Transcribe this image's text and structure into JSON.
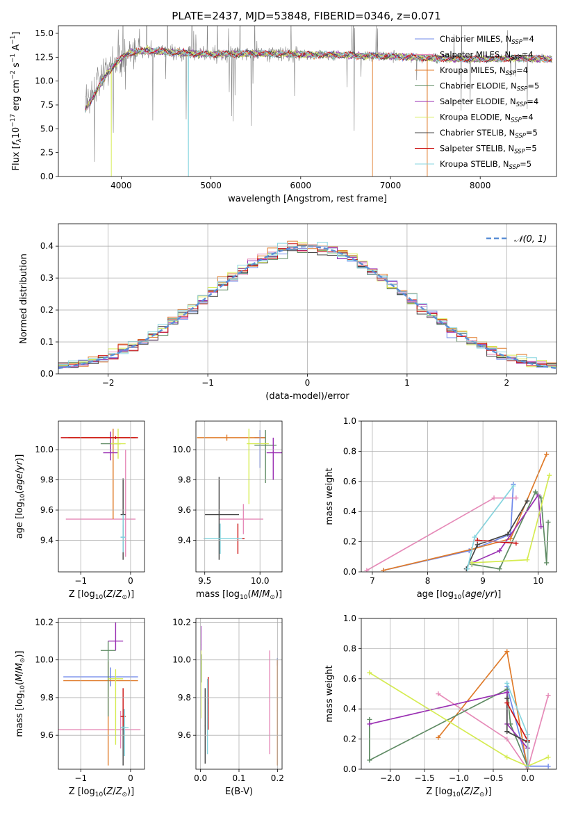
{
  "title": "PLATE=2437, MJD=53848, FIBERID=0346, z=0.071",
  "colors": {
    "chabrier_miles": "#6f88ea",
    "salpeter_miles": "#e68ab8",
    "kroupa_miles": "#e07b2a",
    "chabrier_elodie": "#5f8b64",
    "salpeter_elodie": "#9a2fb3",
    "kroupa_elodie": "#d6ec52",
    "chabrier_stelib": "#444444",
    "salpeter_stelib": "#cc1111",
    "kroupa_stelib": "#86d5df",
    "data": "#808080",
    "gaussian": "#5b8fd6",
    "grid": "#b0b0b0"
  },
  "legend_spectrum": [
    {
      "key": "chabrier_miles",
      "label": "Chabrier MILES, N",
      "sub": "SSP",
      "suffix": "=4"
    },
    {
      "key": "salpeter_miles",
      "label": "Salpeter MILES, N",
      "sub": "SSP",
      "suffix": "=4"
    },
    {
      "key": "kroupa_miles",
      "label": "Kroupa MILES, N",
      "sub": "SSP",
      "suffix": "=4"
    },
    {
      "key": "chabrier_elodie",
      "label": "Chabrier ELODIE, N",
      "sub": "SSP",
      "suffix": "=5"
    },
    {
      "key": "salpeter_elodie",
      "label": "Salpeter ELODIE, N",
      "sub": "SSP",
      "suffix": "=4"
    },
    {
      "key": "kroupa_elodie",
      "label": "Kroupa ELODIE, N",
      "sub": "SSP",
      "suffix": "=4"
    },
    {
      "key": "chabrier_stelib",
      "label": "Chabrier STELIB, N",
      "sub": "SSP",
      "suffix": "=5"
    },
    {
      "key": "salpeter_stelib",
      "label": "Salpeter STELIB, N",
      "sub": "SSP",
      "suffix": "=5"
    },
    {
      "key": "kroupa_stelib",
      "label": "Kroupa STELIB, N",
      "sub": "SSP",
      "suffix": "=5"
    }
  ],
  "chart_data": [
    {
      "id": "spectrum",
      "type": "line",
      "xlabel": "wavelength [Angstrom, rest frame]",
      "ylabel": "Flux [f_λ 10^-17 erg cm^-2 s^-1 A^-1]",
      "xlim": [
        3300,
        8850
      ],
      "ylim": [
        0,
        15.8
      ],
      "xticks": [
        4000,
        5000,
        6000,
        7000,
        8000
      ],
      "yticks": [
        0.0,
        2.5,
        5.0,
        7.5,
        10.0,
        12.5,
        15.0
      ],
      "grid": false,
      "legend": "upper right",
      "continuum": {
        "x": [
          3600,
          3700,
          3800,
          3900,
          4000,
          4100,
          4300,
          4600,
          5000,
          5500,
          6000,
          6500,
          7000,
          7500,
          8000,
          8500,
          8800
        ],
        "y": [
          7.6,
          9.0,
          10.5,
          11.6,
          12.4,
          13.0,
          13.2,
          13.0,
          12.8,
          12.9,
          12.8,
          12.7,
          12.6,
          12.4,
          12.3,
          12.4,
          12.3
        ]
      },
      "model_dips": [
        {
          "key": "kroupa_elodie",
          "x": 3890
        },
        {
          "key": "kroupa_stelib",
          "x": 4750
        },
        {
          "key": "kroupa_miles",
          "x": 6800
        },
        {
          "key": "kroupa_miles",
          "x": 7410
        }
      ]
    },
    {
      "id": "residuals",
      "type": "step-histogram",
      "xlabel": "(data-model)/error",
      "ylabel": "Normed distribution",
      "xlim": [
        -2.5,
        2.5
      ],
      "ylim": [
        0,
        0.47
      ],
      "xticks": [
        -2,
        -1,
        0,
        1,
        2
      ],
      "yticks": [
        0.0,
        0.1,
        0.2,
        0.3,
        0.4
      ],
      "bin_width": 0.1,
      "grid": true,
      "legend": "upper right",
      "legend_label": "𝒩(0, 1)",
      "series": [
        "chabrier_miles",
        "salpeter_miles",
        "kroupa_miles",
        "chabrier_elodie",
        "salpeter_elodie",
        "kroupa_elodie",
        "chabrier_stelib",
        "salpeter_stelib",
        "kroupa_stelib"
      ]
    },
    {
      "id": "age_vs_Z",
      "type": "errorbar",
      "xlabel": "Z [log10(Z/Z⊙)]",
      "ylabel": "age [log10(age/yr)]",
      "xlim": [
        -1.45,
        0.28
      ],
      "ylim": [
        9.19,
        10.19
      ],
      "xticks": [
        -1,
        0
      ],
      "yticks": [
        9.4,
        9.6,
        9.8,
        10.0
      ],
      "grid": true,
      "points": [
        {
          "key": "chabrier_miles",
          "x": -0.15,
          "xerr": [
            0.05,
            0.05
          ],
          "y": 9.42,
          "yerr": [
            0.1,
            0.08
          ]
        },
        {
          "key": "salpeter_miles",
          "x": -0.1,
          "xerr": [
            1.2,
            0.2
          ],
          "y": 9.54,
          "yerr": [
            0.25,
            0.46
          ]
        },
        {
          "key": "kroupa_miles",
          "x": -0.35,
          "xerr": [
            0.9,
            0.45
          ],
          "y": 10.08,
          "yerr": [
            0.54,
            0.06
          ]
        },
        {
          "key": "chabrier_elodie",
          "x": -0.4,
          "xerr": [
            0.2,
            0.2
          ],
          "y": 10.04,
          "yerr": [
            0.06,
            0.06
          ]
        },
        {
          "key": "salpeter_elodie",
          "x": -0.4,
          "xerr": [
            0.15,
            0.15
          ],
          "y": 9.98,
          "yerr": [
            0.05,
            0.14
          ]
        },
        {
          "key": "kroupa_elodie",
          "x": -0.25,
          "xerr": [
            0.15,
            0.15
          ],
          "y": 10.04,
          "yerr": [
            0.1,
            0.1
          ]
        },
        {
          "key": "chabrier_stelib",
          "x": -0.15,
          "xerr": [
            0.05,
            0.05
          ],
          "y": 9.57,
          "yerr": [
            0.3,
            0.24
          ]
        },
        {
          "key": "salpeter_stelib",
          "x": -0.3,
          "xerr": [
            1.1,
            0.45
          ],
          "y": 10.08,
          "yerr": [
            0.01,
            0.01
          ]
        },
        {
          "key": "kroupa_stelib",
          "x": -0.15,
          "xerr": [
            0.05,
            0.05
          ],
          "y": 9.42,
          "yerr": [
            0.1,
            0.15
          ]
        }
      ]
    },
    {
      "id": "age_vs_mass",
      "type": "errorbar",
      "xlabel": "mass [log10(M/M⊙)]",
      "ylabel": "",
      "xlim": [
        9.42,
        10.2
      ],
      "ylim": [
        9.19,
        10.19
      ],
      "xticks": [
        9.5,
        10.0
      ],
      "yticks": [
        9.4,
        9.6,
        9.8,
        10.0
      ],
      "grid": true,
      "points": [
        {
          "key": "chabrier_miles",
          "x": 10.0,
          "xerr": [
            0.05,
            0.05
          ],
          "y": 10.08,
          "yerr": [
            0.2,
            0.05
          ]
        },
        {
          "key": "salpeter_miles",
          "x": 9.85,
          "xerr": [
            0.22,
            0.18
          ],
          "y": 9.54,
          "yerr": [
            0.1,
            0.1
          ]
        },
        {
          "key": "kroupa_miles",
          "x": 9.7,
          "xerr": [
            0.27,
            0.35
          ],
          "y": 10.08,
          "yerr": [
            0.02,
            0.02
          ]
        },
        {
          "key": "chabrier_elodie",
          "x": 10.05,
          "xerr": [
            0.1,
            0.1
          ],
          "y": 10.03,
          "yerr": [
            0.25,
            0.1
          ]
        },
        {
          "key": "salpeter_elodie",
          "x": 10.12,
          "xerr": [
            0.06,
            0.1
          ],
          "y": 9.98,
          "yerr": [
            0.18,
            0.1
          ]
        },
        {
          "key": "kroupa_elodie",
          "x": 9.9,
          "xerr": [
            0.02,
            0.18
          ],
          "y": 10.04,
          "yerr": [
            0.4,
            0.1
          ]
        },
        {
          "key": "chabrier_stelib",
          "x": 9.63,
          "xerr": [
            0.13,
            0.18
          ],
          "y": 9.57,
          "yerr": [
            0.3,
            0.25
          ]
        },
        {
          "key": "salpeter_stelib",
          "x": 9.8,
          "xerr": [
            0.1,
            0.06
          ],
          "y": 9.41,
          "yerr": [
            0.1,
            0.1
          ]
        },
        {
          "key": "kroupa_stelib",
          "x": 9.64,
          "xerr": [
            0.15,
            0.2
          ],
          "y": 9.41,
          "yerr": [
            0.1,
            0.1
          ]
        }
      ]
    },
    {
      "id": "weight_vs_age",
      "type": "line",
      "xlabel": "age [log10(age/yr)]",
      "ylabel": "mass weight",
      "xlim": [
        6.8,
        10.33
      ],
      "ylim": [
        0,
        1.0
      ],
      "xticks": [
        7,
        8,
        9,
        10
      ],
      "yticks": [
        0.0,
        0.2,
        0.4,
        0.6,
        0.8,
        1.0
      ],
      "grid": true,
      "series": [
        {
          "key": "chabrier_miles",
          "x": [
            7.2,
            8.75,
            9.5,
            9.55
          ],
          "y": [
            0.01,
            0.14,
            0.25,
            0.58
          ]
        },
        {
          "key": "salpeter_miles",
          "x": [
            6.9,
            9.2,
            9.6
          ],
          "y": [
            0.01,
            0.49,
            0.49
          ]
        },
        {
          "key": "kroupa_miles",
          "x": [
            7.2,
            8.8,
            9.5,
            10.15
          ],
          "y": [
            0.01,
            0.15,
            0.22,
            0.78
          ]
        },
        {
          "key": "chabrier_elodie",
          "x": [
            8.8,
            9.3,
            9.95,
            10.05,
            10.15,
            10.18
          ],
          "y": [
            0.05,
            0.02,
            0.53,
            0.49,
            0.06,
            0.33
          ]
        },
        {
          "key": "salpeter_elodie",
          "x": [
            8.8,
            9.3,
            10.0,
            10.05
          ],
          "y": [
            0.06,
            0.14,
            0.51,
            0.3
          ]
        },
        {
          "key": "kroupa_elodie",
          "x": [
            8.8,
            9.8,
            10.2
          ],
          "y": [
            0.06,
            0.08,
            0.64
          ]
        },
        {
          "key": "chabrier_stelib",
          "x": [
            8.7,
            8.9,
            9.45,
            9.8
          ],
          "y": [
            0.02,
            0.18,
            0.25,
            0.47
          ]
        },
        {
          "key": "salpeter_stelib",
          "x": [
            8.9,
            9.6
          ],
          "y": [
            0.21,
            0.19
          ]
        },
        {
          "key": "kroupa_stelib",
          "x": [
            8.72,
            8.85,
            9.55
          ],
          "y": [
            0.02,
            0.23,
            0.57
          ]
        }
      ]
    },
    {
      "id": "mass_vs_Z",
      "type": "errorbar",
      "xlabel": "Z [log10(Z/Z⊙)]",
      "ylabel": "mass [log10(M/M⊙)]",
      "xlim": [
        -1.45,
        0.28
      ],
      "ylim": [
        9.42,
        10.22
      ],
      "xticks": [
        -1,
        0
      ],
      "yticks": [
        9.6,
        9.8,
        10.0,
        10.2
      ],
      "grid": true,
      "points": [
        {
          "key": "chabrier_miles",
          "x": -0.4,
          "xerr": [
            0.95,
            0.55
          ],
          "y": 9.91,
          "yerr": [
            0.05,
            0.05
          ]
        },
        {
          "key": "salpeter_miles",
          "x": -0.2,
          "xerr": [
            1.25,
            0.4
          ],
          "y": 9.63,
          "yerr": [
            0.1,
            0.1
          ]
        },
        {
          "key": "kroupa_miles",
          "x": -0.45,
          "xerr": [
            0.9,
            0.6
          ],
          "y": 9.89,
          "yerr": [
            0.45,
            0.1
          ]
        },
        {
          "key": "chabrier_elodie",
          "x": -0.45,
          "xerr": [
            0.15,
            0.15
          ],
          "y": 10.05,
          "yerr": [
            0.35,
            0.05
          ]
        },
        {
          "key": "salpeter_elodie",
          "x": -0.3,
          "xerr": [
            0.15,
            0.15
          ],
          "y": 10.1,
          "yerr": [
            0.05,
            0.1
          ]
        },
        {
          "key": "kroupa_elodie",
          "x": -0.3,
          "xerr": [
            0.15,
            0.15
          ],
          "y": 9.9,
          "yerr": [
            0.35,
            0.05
          ]
        },
        {
          "key": "chabrier_stelib",
          "x": -0.15,
          "xerr": [
            0.05,
            0.05
          ],
          "y": 9.64,
          "yerr": [
            0.2,
            0.1
          ]
        },
        {
          "key": "salpeter_stelib",
          "x": -0.15,
          "xerr": [
            0.05,
            0.05
          ],
          "y": 9.7,
          "yerr": [
            0.05,
            0.15
          ]
        },
        {
          "key": "kroupa_stelib",
          "x": -0.12,
          "xerr": [
            0.08,
            0.08
          ],
          "y": 9.64,
          "yerr": [
            0.15,
            0.1
          ]
        }
      ]
    },
    {
      "id": "mass_vs_ebv",
      "type": "errorbar",
      "xlabel": "E(B-V)",
      "ylabel": "",
      "xlim": [
        -0.012,
        0.212
      ],
      "ylim": [
        9.42,
        10.22
      ],
      "xticks": [
        0.0,
        0.1,
        0.2
      ],
      "yticks": [
        9.6,
        9.8,
        10.0,
        10.2
      ],
      "grid": true,
      "points": [
        {
          "key": "chabrier_miles",
          "x": 0.2,
          "xerr": [
            0.001,
            0.001
          ],
          "y": 10.0,
          "yerr": [
            0.03,
            0.01
          ]
        },
        {
          "key": "salpeter_miles",
          "x": 0.18,
          "xerr": [
            0.001,
            0.001
          ],
          "y": 9.78,
          "yerr": [
            0.28,
            0.27
          ]
        },
        {
          "key": "kroupa_miles",
          "x": 0.2,
          "xerr": [
            0.001,
            0.001
          ],
          "y": 9.73,
          "yerr": [
            0.29,
            0.27
          ]
        },
        {
          "key": "chabrier_elodie",
          "x": 0.002,
          "xerr": [
            0.001,
            0.001
          ],
          "y": 9.98,
          "yerr": [
            0.1,
            0.05
          ]
        },
        {
          "key": "salpeter_elodie",
          "x": 0.001,
          "xerr": [
            0.001,
            0.001
          ],
          "y": 10.08,
          "yerr": [
            0.1,
            0.1
          ]
        },
        {
          "key": "kroupa_elodie",
          "x": 0.001,
          "xerr": [
            0.001,
            0.001
          ],
          "y": 9.87,
          "yerr": [
            0.18,
            0.18
          ]
        },
        {
          "key": "chabrier_stelib",
          "x": 0.012,
          "xerr": [
            0.001,
            0.001
          ],
          "y": 9.65,
          "yerr": [
            0.2,
            0.2
          ]
        },
        {
          "key": "salpeter_stelib",
          "x": 0.02,
          "xerr": [
            0.001,
            0.001
          ],
          "y": 9.77,
          "yerr": [
            0.14,
            0.14
          ]
        },
        {
          "key": "kroupa_stelib",
          "x": 0.018,
          "xerr": [
            0.001,
            0.001
          ],
          "y": 9.7,
          "yerr": [
            0.2,
            0.2
          ]
        }
      ]
    },
    {
      "id": "weight_vs_Z",
      "type": "line",
      "xlabel": "Z [log10(Z/Z⊙)]",
      "ylabel": "mass weight",
      "xlim": [
        -2.42,
        0.42
      ],
      "ylim": [
        0,
        1.0
      ],
      "xticks": [
        -2.0,
        -1.5,
        -1.0,
        -0.5,
        0.0
      ],
      "yticks": [
        0.0,
        0.2,
        0.4,
        0.6,
        0.8,
        1.0
      ],
      "grid": true,
      "series": [
        {
          "key": "chabrier_miles",
          "x": [
            -0.3,
            0.0,
            0.3
          ],
          "y": [
            0.55,
            0.02,
            0.02
          ]
        },
        {
          "key": "salpeter_miles",
          "x": [
            -1.3,
            -0.3,
            0.0,
            0.3
          ],
          "y": [
            0.5,
            0.2,
            0.0,
            0.49
          ]
        },
        {
          "key": "kroupa_miles",
          "x": [
            -1.3,
            -0.3,
            0.0
          ],
          "y": [
            0.21,
            0.78,
            0.0
          ]
        },
        {
          "key": "chabrier_elodie",
          "x": [
            -2.3,
            -2.3,
            -0.3,
            -0.25,
            0.0
          ],
          "y": [
            0.33,
            0.06,
            0.53,
            0.3,
            0.02
          ]
        },
        {
          "key": "salpeter_elodie",
          "x": [
            -2.3,
            -0.3,
            -0.3,
            0.0
          ],
          "y": [
            0.3,
            0.51,
            0.3,
            0.14
          ]
        },
        {
          "key": "kroupa_elodie",
          "x": [
            -2.3,
            -0.3,
            0.0,
            0.3
          ],
          "y": [
            0.64,
            0.08,
            0.02,
            0.08
          ]
        },
        {
          "key": "chabrier_stelib",
          "x": [
            -0.3,
            -0.3,
            0.0,
            0.0
          ],
          "y": [
            0.47,
            0.25,
            0.18,
            0.02
          ]
        },
        {
          "key": "salpeter_stelib",
          "x": [
            -0.3,
            0.0
          ],
          "y": [
            0.44,
            0.19
          ]
        },
        {
          "key": "kroupa_stelib",
          "x": [
            -0.3,
            0.0,
            0.0
          ],
          "y": [
            0.57,
            0.23,
            0.02
          ]
        }
      ]
    }
  ]
}
